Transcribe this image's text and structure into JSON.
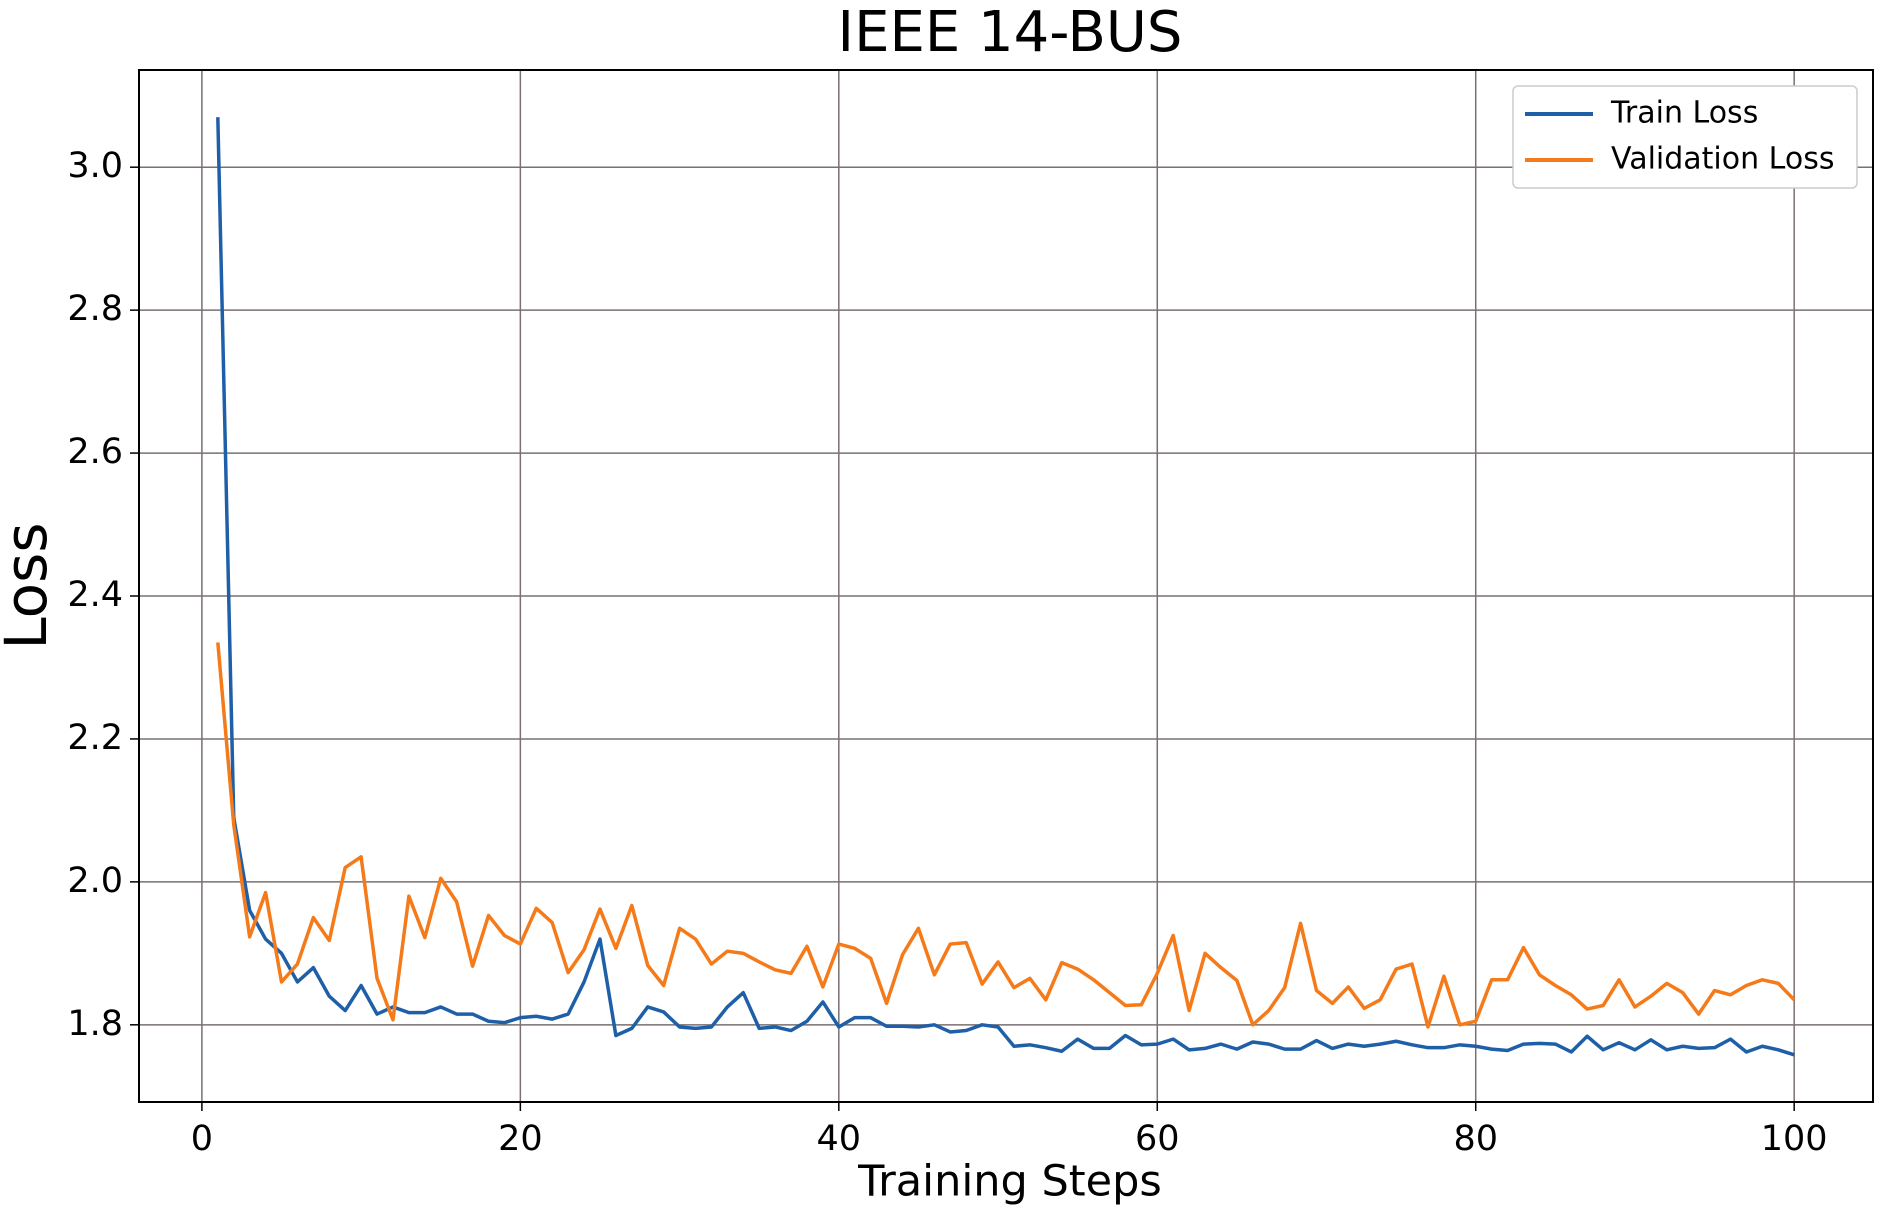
{
  "chart_data": {
    "type": "line",
    "title": "IEEE 14-BUS",
    "x_label": "Training Steps",
    "y_label": "Loss",
    "x": [
      1,
      2,
      3,
      4,
      5,
      6,
      7,
      8,
      9,
      10,
      11,
      12,
      13,
      14,
      15,
      16,
      17,
      18,
      19,
      20,
      21,
      22,
      23,
      24,
      25,
      26,
      27,
      28,
      29,
      30,
      31,
      32,
      33,
      34,
      35,
      36,
      37,
      38,
      39,
      40,
      41,
      42,
      43,
      44,
      45,
      46,
      47,
      48,
      49,
      50,
      51,
      52,
      53,
      54,
      55,
      56,
      57,
      58,
      59,
      60,
      61,
      62,
      63,
      64,
      65,
      66,
      67,
      68,
      69,
      70,
      71,
      72,
      73,
      74,
      75,
      76,
      77,
      78,
      79,
      80,
      81,
      82,
      83,
      84,
      85,
      86,
      87,
      88,
      89,
      90,
      91,
      92,
      93,
      94,
      95,
      96,
      97,
      98,
      99,
      100
    ],
    "series": [
      {
        "name": "Train Loss",
        "color": "#1f5fa8",
        "values": [
          3.07,
          2.09,
          1.96,
          1.92,
          1.9,
          1.86,
          1.88,
          1.84,
          1.82,
          1.855,
          1.815,
          1.825,
          1.817,
          1.817,
          1.825,
          1.815,
          1.815,
          1.805,
          1.803,
          1.81,
          1.812,
          1.808,
          1.815,
          1.86,
          1.92,
          1.785,
          1.795,
          1.825,
          1.818,
          1.797,
          1.795,
          1.797,
          1.825,
          1.845,
          1.795,
          1.797,
          1.792,
          1.805,
          1.832,
          1.797,
          1.81,
          1.81,
          1.798,
          1.798,
          1.797,
          1.8,
          1.79,
          1.792,
          1.8,
          1.797,
          1.77,
          1.772,
          1.768,
          1.763,
          1.78,
          1.767,
          1.767,
          1.785,
          1.772,
          1.773,
          1.78,
          1.765,
          1.767,
          1.773,
          1.766,
          1.776,
          1.773,
          1.766,
          1.766,
          1.778,
          1.767,
          1.773,
          1.77,
          1.773,
          1.777,
          1.772,
          1.768,
          1.768,
          1.772,
          1.77,
          1.766,
          1.764,
          1.773,
          1.774,
          1.773,
          1.762,
          1.784,
          1.765,
          1.775,
          1.765,
          1.779,
          1.765,
          1.77,
          1.767,
          1.768,
          1.78,
          1.762,
          1.77,
          1.765,
          1.758
        ]
      },
      {
        "name": "Validation Loss",
        "color": "#f57a1a",
        "values": [
          2.335,
          2.08,
          1.923,
          1.985,
          1.86,
          1.885,
          1.95,
          1.918,
          2.02,
          2.035,
          1.865,
          1.807,
          1.98,
          1.922,
          2.005,
          1.972,
          1.882,
          1.953,
          1.925,
          1.913,
          1.963,
          1.943,
          1.873,
          1.905,
          1.962,
          1.907,
          1.967,
          1.883,
          1.855,
          1.935,
          1.92,
          1.885,
          1.903,
          1.9,
          1.888,
          1.877,
          1.872,
          1.91,
          1.853,
          1.913,
          1.907,
          1.893,
          1.83,
          1.898,
          1.935,
          1.87,
          1.913,
          1.915,
          1.857,
          1.888,
          1.852,
          1.865,
          1.835,
          1.887,
          1.878,
          1.863,
          1.845,
          1.827,
          1.828,
          1.872,
          1.925,
          1.82,
          1.9,
          1.88,
          1.862,
          1.8,
          1.82,
          1.852,
          1.942,
          1.848,
          1.83,
          1.853,
          1.823,
          1.835,
          1.878,
          1.885,
          1.797,
          1.868,
          1.8,
          1.805,
          1.863,
          1.863,
          1.908,
          1.87,
          1.855,
          1.842,
          1.822,
          1.827,
          1.863,
          1.825,
          1.84,
          1.858,
          1.845,
          1.815,
          1.848,
          1.842,
          1.855,
          1.863,
          1.858,
          1.835
        ]
      }
    ],
    "xlim": [
      -3.95,
      104.95
    ],
    "xticks": [
      0,
      20,
      40,
      60,
      80,
      100
    ],
    "ylim": [
      1.692,
      3.136
    ],
    "yticks": [
      1.8,
      {
        "value": 2,
        "label": "2.0"
      },
      2.2,
      2.4,
      2.6,
      2.8,
      {
        "value": 3,
        "label": "3.0"
      }
    ],
    "grid": true,
    "legend": "upper right"
  }
}
